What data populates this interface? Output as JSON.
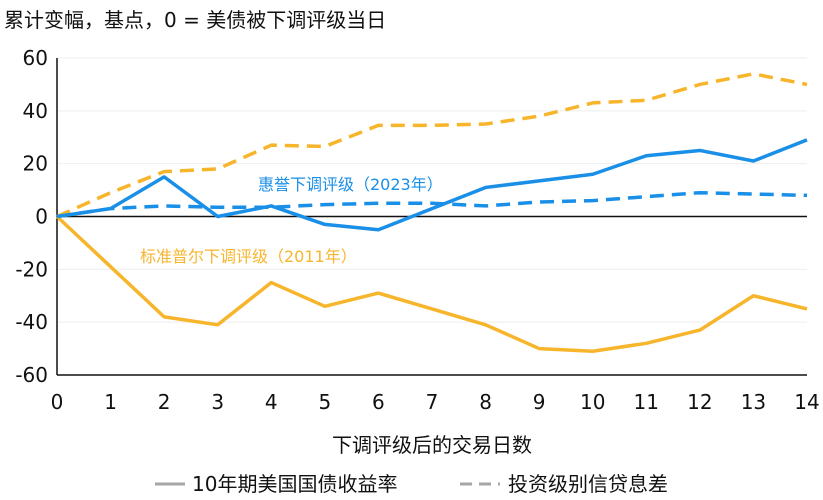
{
  "chart_data": {
    "type": "line",
    "title": "累计变幅，基点，0 = 美债被下调评级当日",
    "xlabel": "下调评级后的交易日数",
    "ylabel": "",
    "x": [
      0,
      1,
      2,
      3,
      4,
      5,
      6,
      7,
      8,
      9,
      10,
      11,
      12,
      13,
      14
    ],
    "xlim": [
      0,
      14
    ],
    "ylim": [
      -60,
      60
    ],
    "yticks": [
      -60,
      -40,
      -20,
      0,
      20,
      40,
      60
    ],
    "grid": true,
    "series": [
      {
        "name": "标准普尔下调评级（2011年）- 投资级别信贷息差",
        "color": "#F7B52C",
        "dash": true,
        "values": [
          0,
          9,
          17,
          18,
          27,
          26.5,
          34.5,
          34.5,
          35,
          38,
          43,
          44,
          50,
          54,
          50
        ]
      },
      {
        "name": "标准普尔下调评级（2011年）- 10年期美国国债收益率",
        "color": "#F7B52C",
        "dash": false,
        "values": [
          0,
          -19,
          -38,
          -41,
          -25,
          -34,
          -29,
          -35,
          -41,
          -50,
          -51,
          -48,
          -43,
          -30,
          -35
        ]
      },
      {
        "name": "惠誉下调评级（2023年）- 10年期美国国债收益率",
        "color": "#1A8FE8",
        "dash": false,
        "values": [
          0,
          3,
          15,
          0,
          4,
          -3,
          -5,
          3,
          11,
          13.5,
          16,
          23,
          25,
          21,
          29
        ]
      },
      {
        "name": "惠誉下调评级（2023年）- 投资级别信贷息差",
        "color": "#1A8FE8",
        "dash": true,
        "values": [
          0,
          3,
          4,
          3.5,
          3.5,
          4.5,
          5,
          5,
          4,
          5.5,
          6,
          7.5,
          9,
          8.5,
          8
        ]
      }
    ],
    "annotations": [
      {
        "text": "惠誉下调评级（2023年）",
        "color": "#1A8FE8"
      },
      {
        "text": "标准普尔下调评级（2011年）",
        "color": "#F7B52C"
      }
    ],
    "legend": {
      "placement": "bottom",
      "items": [
        {
          "label": "10年期美国国债收益率",
          "style": "solid",
          "color": "#A6A6A6"
        },
        {
          "label": "投资级别信贷息差",
          "style": "dashed",
          "color": "#A6A6A6"
        }
      ]
    }
  }
}
